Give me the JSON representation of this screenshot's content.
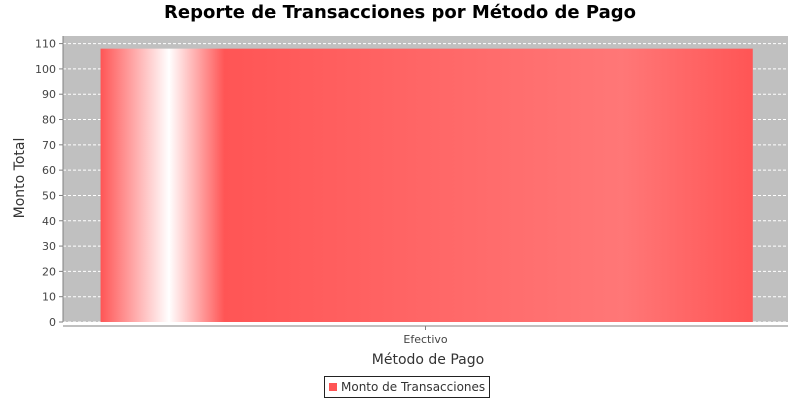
{
  "chart_data": {
    "type": "bar",
    "title": "Reporte de Transacciones por Método de Pago",
    "xlabel": "Método de Pago",
    "ylabel": "Monto Total",
    "categories": [
      "Efectivo"
    ],
    "series": [
      {
        "name": "Monto de Transacciones",
        "values": [
          108
        ],
        "color": "#ff5555"
      }
    ],
    "ylim": [
      0,
      113
    ],
    "yticks": [
      0,
      10,
      20,
      30,
      40,
      50,
      60,
      70,
      80,
      90,
      100,
      110
    ],
    "grid": true,
    "legend_position": "bottom",
    "plot_background": "#c0c0c0"
  }
}
